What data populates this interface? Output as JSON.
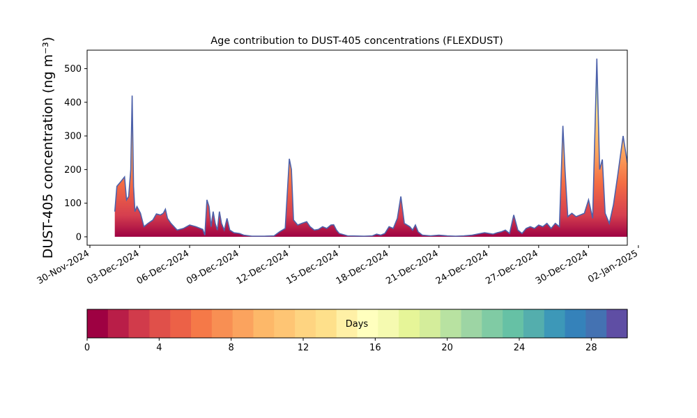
{
  "chart_data": [
    {
      "type": "area",
      "title": "Age contribution to DUST-405 concentrations (FLEXDUST)",
      "ylabel": "DUST-405 concentration (ng m⁻³)",
      "xlabel": "",
      "ylim": [
        -25,
        555
      ],
      "xlim": [
        "2024-11-29T20:00",
        "2025-01-01T08:00"
      ],
      "x_ticks": [
        "30-Nov-2024",
        "03-Dec-2024",
        "06-Dec-2024",
        "09-Dec-2024",
        "12-Dec-2024",
        "15-Dec-2024",
        "18-Dec-2024",
        "21-Dec-2024",
        "24-Dec-2024",
        "27-Dec-2024",
        "30-Dec-2024",
        "02-Jan-2025"
      ],
      "y_ticks": [
        0,
        100,
        200,
        300,
        400,
        500
      ],
      "grid": false,
      "total_series": {
        "name": "",
        "color": "#4d61aa",
        "points": [
          [
            "2024-12-01T12:00",
            75
          ],
          [
            "2024-12-01T15:00",
            150
          ],
          [
            "2024-12-01T21:00",
            165
          ],
          [
            "2024-12-02T02:00",
            178
          ],
          [
            "2024-12-02T05:00",
            110
          ],
          [
            "2024-12-02T08:00",
            120
          ],
          [
            "2024-12-02T11:00",
            200
          ],
          [
            "2024-12-02T13:00",
            420
          ],
          [
            "2024-12-02T15:00",
            150
          ],
          [
            "2024-12-02T17:00",
            75
          ],
          [
            "2024-12-02T20:00",
            90
          ],
          [
            "2024-12-03T01:00",
            70
          ],
          [
            "2024-12-03T06:00",
            30
          ],
          [
            "2024-12-03T12:00",
            40
          ],
          [
            "2024-12-03T19:00",
            50
          ],
          [
            "2024-12-04T00:00",
            68
          ],
          [
            "2024-12-04T06:00",
            65
          ],
          [
            "2024-12-04T10:00",
            70
          ],
          [
            "2024-12-04T13:00",
            82
          ],
          [
            "2024-12-04T16:00",
            55
          ],
          [
            "2024-12-04T21:00",
            40
          ],
          [
            "2024-12-05T06:00",
            20
          ],
          [
            "2024-12-05T15:00",
            25
          ],
          [
            "2024-12-06T00:00",
            35
          ],
          [
            "2024-12-06T09:00",
            30
          ],
          [
            "2024-12-06T19:00",
            22
          ],
          [
            "2024-12-06T22:00",
            5
          ],
          [
            "2024-12-07T01:00",
            110
          ],
          [
            "2024-12-07T04:00",
            90
          ],
          [
            "2024-12-07T07:00",
            30
          ],
          [
            "2024-12-07T10:00",
            75
          ],
          [
            "2024-12-07T13:00",
            40
          ],
          [
            "2024-12-07T16:00",
            20
          ],
          [
            "2024-12-07T19:00",
            75
          ],
          [
            "2024-12-07T22:00",
            40
          ],
          [
            "2024-12-08T02:00",
            20
          ],
          [
            "2024-12-08T06:00",
            55
          ],
          [
            "2024-12-08T10:00",
            20
          ],
          [
            "2024-12-08T16:00",
            12
          ],
          [
            "2024-12-09T00:00",
            10
          ],
          [
            "2024-12-09T06:00",
            5
          ],
          [
            "2024-12-09T18:00",
            2
          ],
          [
            "2024-12-10T12:00",
            2
          ],
          [
            "2024-12-11T02:00",
            3
          ],
          [
            "2024-12-11T10:00",
            15
          ],
          [
            "2024-12-11T18:00",
            25
          ],
          [
            "2024-12-12T00:00",
            232
          ],
          [
            "2024-12-12T03:00",
            200
          ],
          [
            "2024-12-12T06:00",
            50
          ],
          [
            "2024-12-12T12:00",
            35
          ],
          [
            "2024-12-12T18:00",
            40
          ],
          [
            "2024-12-13T01:00",
            45
          ],
          [
            "2024-12-13T06:00",
            30
          ],
          [
            "2024-12-13T12:00",
            20
          ],
          [
            "2024-12-13T18:00",
            22
          ],
          [
            "2024-12-14T00:00",
            30
          ],
          [
            "2024-12-14T06:00",
            25
          ],
          [
            "2024-12-14T12:00",
            35
          ],
          [
            "2024-12-14T16:00",
            36
          ],
          [
            "2024-12-14T20:00",
            20
          ],
          [
            "2024-12-15T00:00",
            10
          ],
          [
            "2024-12-15T12:00",
            3
          ],
          [
            "2024-12-16T12:00",
            2
          ],
          [
            "2024-12-17T00:00",
            3
          ],
          [
            "2024-12-17T06:00",
            8
          ],
          [
            "2024-12-17T12:00",
            5
          ],
          [
            "2024-12-17T18:00",
            10
          ],
          [
            "2024-12-18T00:00",
            30
          ],
          [
            "2024-12-18T06:00",
            25
          ],
          [
            "2024-12-18T12:00",
            55
          ],
          [
            "2024-12-18T17:00",
            120
          ],
          [
            "2024-12-18T22:00",
            40
          ],
          [
            "2024-12-19T06:00",
            30
          ],
          [
            "2024-12-19T10:00",
            20
          ],
          [
            "2024-12-19T14:00",
            35
          ],
          [
            "2024-12-19T18:00",
            15
          ],
          [
            "2024-12-20T00:00",
            5
          ],
          [
            "2024-12-20T12:00",
            3
          ],
          [
            "2024-12-21T00:00",
            5
          ],
          [
            "2024-12-21T12:00",
            3
          ],
          [
            "2024-12-22T00:00",
            2
          ],
          [
            "2024-12-22T12:00",
            3
          ],
          [
            "2024-12-23T00:00",
            5
          ],
          [
            "2024-12-23T12:00",
            10
          ],
          [
            "2024-12-23T18:00",
            12
          ],
          [
            "2024-12-24T06:00",
            8
          ],
          [
            "2024-12-24T12:00",
            12
          ],
          [
            "2024-12-24T18:00",
            15
          ],
          [
            "2024-12-25T00:00",
            20
          ],
          [
            "2024-12-25T06:00",
            10
          ],
          [
            "2024-12-25T12:00",
            65
          ],
          [
            "2024-12-25T18:00",
            20
          ],
          [
            "2024-12-26T00:00",
            10
          ],
          [
            "2024-12-26T06:00",
            25
          ],
          [
            "2024-12-26T12:00",
            30
          ],
          [
            "2024-12-26T18:00",
            25
          ],
          [
            "2024-12-27T00:00",
            35
          ],
          [
            "2024-12-27T06:00",
            30
          ],
          [
            "2024-12-27T12:00",
            40
          ],
          [
            "2024-12-27T18:00",
            25
          ],
          [
            "2024-12-28T00:00",
            40
          ],
          [
            "2024-12-28T06:00",
            30
          ],
          [
            "2024-12-28T11:00",
            330
          ],
          [
            "2024-12-28T14:00",
            200
          ],
          [
            "2024-12-28T18:00",
            60
          ],
          [
            "2024-12-29T00:00",
            70
          ],
          [
            "2024-12-29T06:00",
            60
          ],
          [
            "2024-12-29T12:00",
            65
          ],
          [
            "2024-12-29T18:00",
            70
          ],
          [
            "2024-12-30T00:00",
            110
          ],
          [
            "2024-12-30T06:00",
            55
          ],
          [
            "2024-12-30T12:00",
            530
          ],
          [
            "2024-12-30T16:00",
            200
          ],
          [
            "2024-12-30T20:00",
            230
          ],
          [
            "2024-12-31T00:00",
            70
          ],
          [
            "2024-12-31T06:00",
            40
          ],
          [
            "2024-12-31T12:00",
            95
          ],
          [
            "2024-12-31T18:00",
            180
          ],
          [
            "2025-01-01T02:00",
            300
          ],
          [
            "2025-01-01T08:00",
            220
          ]
        ]
      },
      "colorbar": {
        "label": "Days",
        "range": [
          0,
          30
        ],
        "ticks": [
          0,
          4,
          8,
          12,
          16,
          20,
          24,
          28
        ],
        "colors": [
          "#9e0142",
          "#b91e48",
          "#d13b4b",
          "#e0504a",
          "#ec6147",
          "#f57948",
          "#f88f53",
          "#fba35e",
          "#fdb869",
          "#fec574",
          "#fed481",
          "#fee08b",
          "#fff0a6",
          "#ffffbe",
          "#f5fab0",
          "#e6f598",
          "#d4ed9b",
          "#b8e2a1",
          "#9dd5a4",
          "#80cba4",
          "#66c1a5",
          "#54aead",
          "#3d98b8",
          "#3582ba",
          "#4472b2",
          "#5f4ea4"
        ]
      }
    }
  ]
}
